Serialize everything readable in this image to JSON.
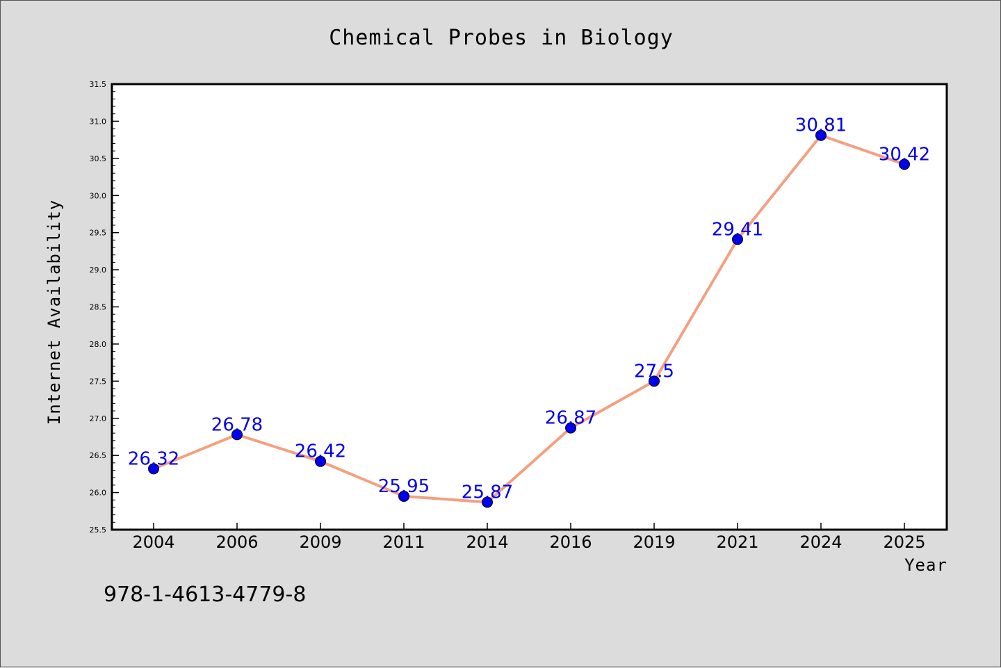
{
  "chart_data": {
    "type": "line",
    "title": "Chemical Probes in Biology",
    "xlabel": "Year",
    "ylabel": "Internet Availability",
    "categories": [
      "2004",
      "2006",
      "2009",
      "2011",
      "2014",
      "2016",
      "2019",
      "2021",
      "2024",
      "2025"
    ],
    "values": [
      26.32,
      26.78,
      26.42,
      25.95,
      25.87,
      26.87,
      27.5,
      29.41,
      30.81,
      30.42
    ],
    "data_labels": [
      "26.32",
      "26.78",
      "26.42",
      "25.95",
      "25.87",
      "26.87",
      "27.5",
      "29.41",
      "30.81",
      "30.42"
    ],
    "ylim": [
      25.5,
      31.5
    ],
    "yticks": [
      25.5,
      26.0,
      26.5,
      27.0,
      27.5,
      28.0,
      28.5,
      29.0,
      29.5,
      30.0,
      30.5,
      31.0,
      31.5
    ],
    "ytick_labels": [
      "25.5",
      "26.0",
      "26.5",
      "27.0",
      "27.5",
      "28.0",
      "28.5",
      "29.0",
      "29.5",
      "30.0",
      "30.5",
      "31.0",
      "31.5"
    ],
    "grid": false,
    "line_color": "#f4a080",
    "marker_color": "#0000ee",
    "label_color": "#0000ee"
  },
  "annotation": {
    "isbn": "978-1-4613-4779-8"
  }
}
